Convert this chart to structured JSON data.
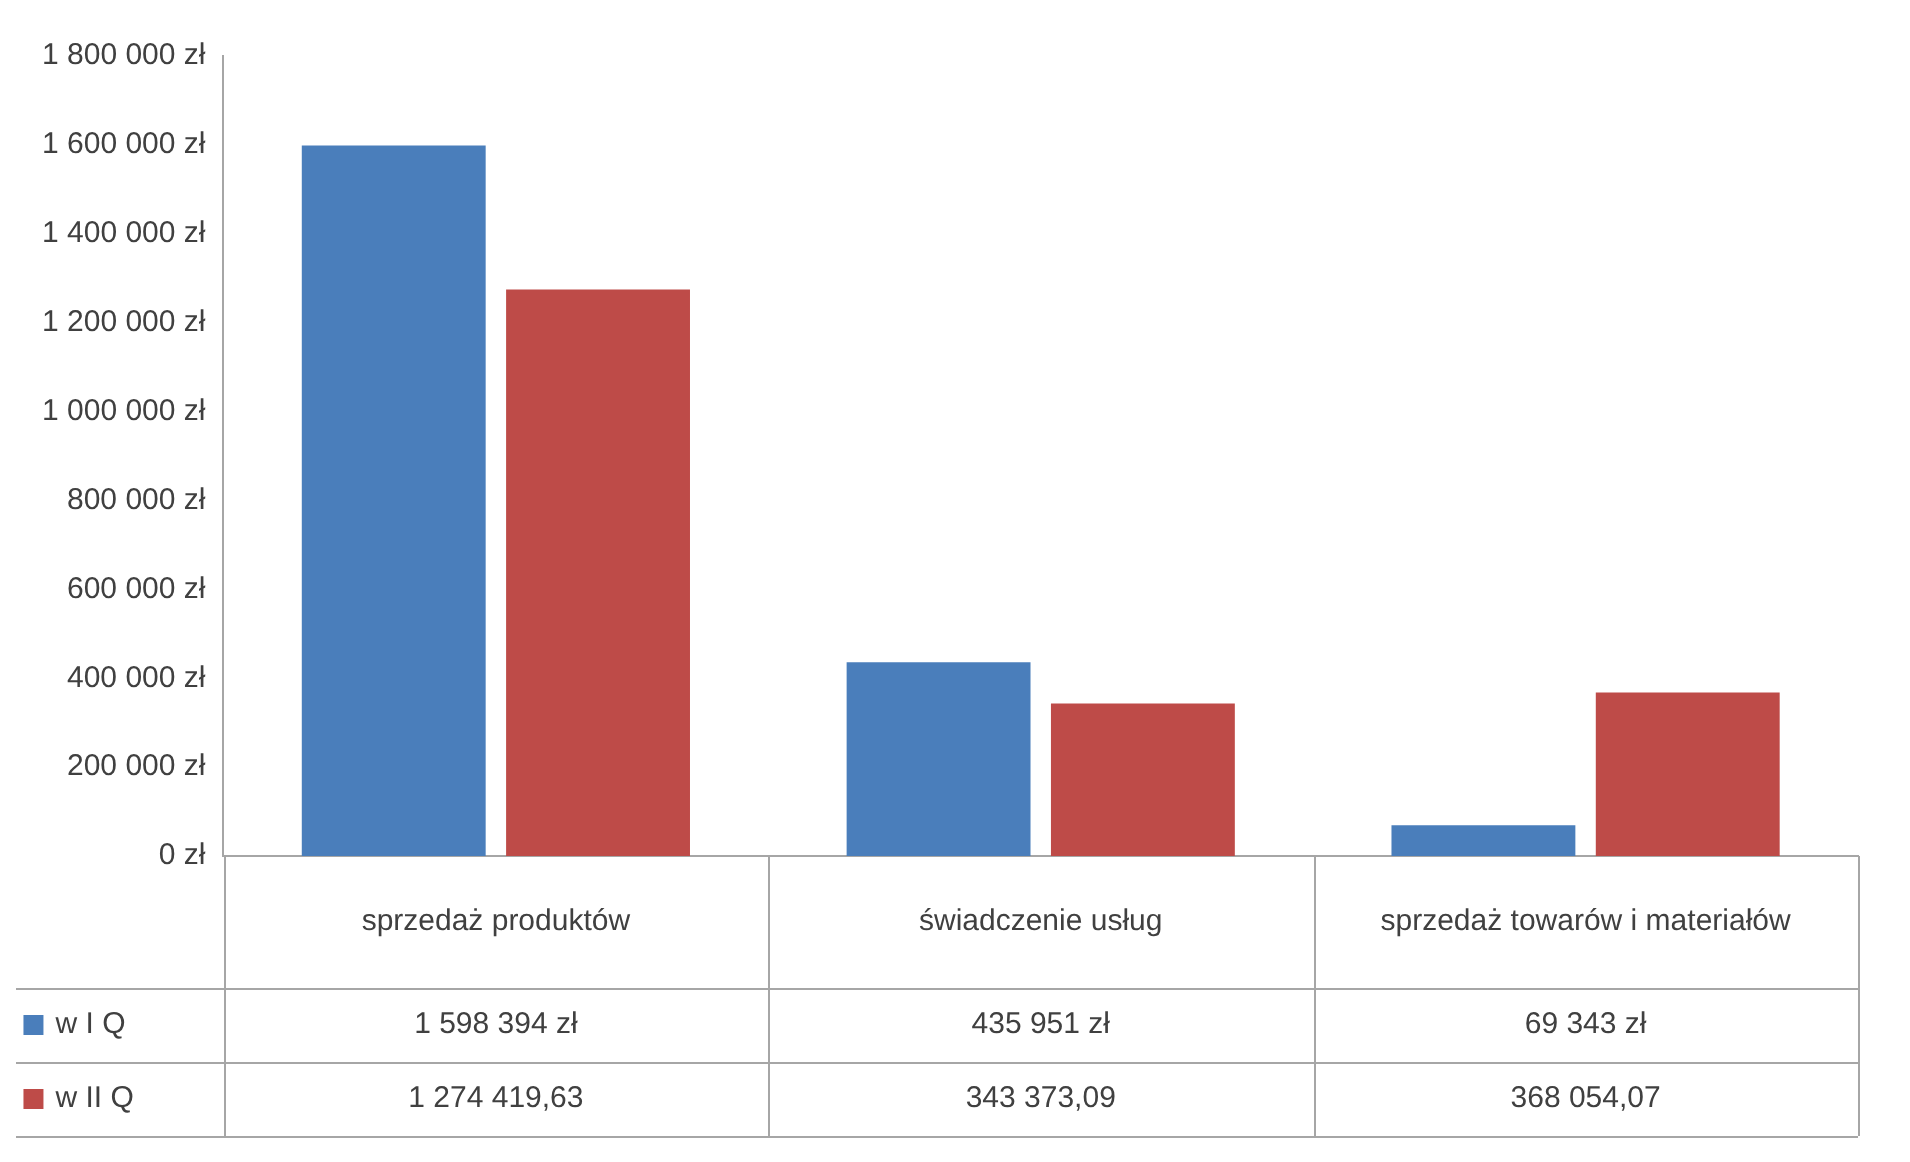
{
  "chart_data": {
    "type": "bar",
    "categories": [
      "sprzedaż produktów",
      "świadczenie usług",
      "sprzedaż towarów i materiałów"
    ],
    "series": [
      {
        "name": "w I Q",
        "color": "#4a7ebb",
        "values": [
          1598394,
          435951,
          69343
        ],
        "value_labels": [
          "1 598 394 zł",
          "435 951 zł",
          "69 343 zł"
        ]
      },
      {
        "name": "w II Q",
        "color": "#be4b48",
        "values": [
          1274419.63,
          343373.09,
          368054.07
        ],
        "value_labels": [
          "1 274 419,63",
          "343 373,09",
          "368 054,07"
        ]
      }
    ],
    "ylim": [
      0,
      1800000
    ],
    "yticks": [
      {
        "value": 0,
        "label": "0 zł"
      },
      {
        "value": 200000,
        "label": "200 000 zł"
      },
      {
        "value": 400000,
        "label": "400 000 zł"
      },
      {
        "value": 600000,
        "label": "600 000 zł"
      },
      {
        "value": 800000,
        "label": "800 000 zł"
      },
      {
        "value": 1000000,
        "label": "1 000 000 zł"
      },
      {
        "value": 1200000,
        "label": "1 200 000 zł"
      },
      {
        "value": 1400000,
        "label": "1 400 000 zł"
      },
      {
        "value": 1600000,
        "label": "1 600 000 zł"
      },
      {
        "value": 1800000,
        "label": "1 800 000 zł"
      }
    ],
    "grid": false,
    "legend": "bottom"
  }
}
